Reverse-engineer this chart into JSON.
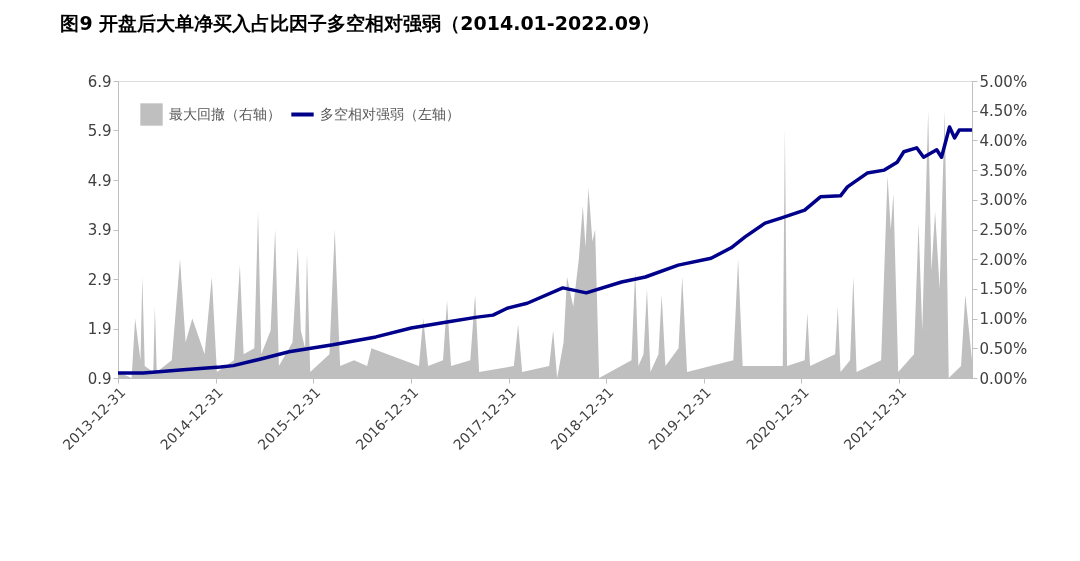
{
  "chart_data": {
    "type": "line",
    "title": "图9  开盘后大单净买入占比因子多空相对强弱（2014.01-2022.09）",
    "series": [
      {
        "name": "最大回撤（右轴）",
        "type": "area",
        "axis": "y2",
        "color": "#bfbfbf",
        "x": [
          "2013-12-31",
          "2014-02-20",
          "2014-03-05",
          "2014-03-25",
          "2014-04-01",
          "2014-04-10",
          "2014-05-12",
          "2014-05-18",
          "2014-05-25",
          "2014-07-20",
          "2014-08-20",
          "2014-09-10",
          "2014-10-05",
          "2014-11-20",
          "2014-12-17",
          "2015-01-05",
          "2015-03-10",
          "2015-04-01",
          "2015-04-15",
          "2015-05-25",
          "2015-06-08",
          "2015-06-20",
          "2015-07-25",
          "2015-08-11",
          "2015-08-25",
          "2015-10-15",
          "2015-11-04",
          "2015-11-15",
          "2015-12-01",
          "2015-12-08",
          "2015-12-20",
          "2016-03-01",
          "2016-03-21",
          "2016-04-10",
          "2016-06-01",
          "2016-07-20",
          "2016-08-05",
          "2017-01-30",
          "2017-02-15",
          "2017-03-05",
          "2017-04-30",
          "2017-05-15",
          "2017-05-30",
          "2017-08-10",
          "2017-08-28",
          "2017-09-12",
          "2018-01-20",
          "2018-02-05",
          "2018-02-20",
          "2018-06-01",
          "2018-06-16",
          "2018-07-01",
          "2018-07-25",
          "2018-08-07",
          "2018-08-30",
          "2018-09-20",
          "2018-10-05",
          "2018-10-15",
          "2018-10-26",
          "2018-11-10",
          "2018-11-20",
          "2018-12-05",
          "2019-04-05",
          "2019-04-19",
          "2019-05-01",
          "2019-05-20",
          "2019-06-02",
          "2019-06-15",
          "2019-07-15",
          "2019-07-27",
          "2019-08-10",
          "2019-09-28",
          "2019-10-12",
          "2019-10-30",
          "2020-04-20",
          "2020-05-08",
          "2020-05-25",
          "2020-10-22",
          "2020-10-30",
          "2020-11-07",
          "2021-01-12",
          "2021-01-22",
          "2021-02-01",
          "2021-05-06",
          "2021-05-16",
          "2021-05-26",
          "2021-07-01",
          "2021-07-13",
          "2021-07-25",
          "2021-10-25",
          "2021-11-18",
          "2021-11-30",
          "2021-12-10",
          "2021-12-28",
          "2022-02-25",
          "2022-03-14",
          "2022-03-28",
          "2022-04-19",
          "2022-05-01",
          "2022-05-15",
          "2022-06-01",
          "2022-06-20",
          "2022-07-05",
          "2022-08-20",
          "2022-09-05",
          "2022-09-30"
        ],
        "values": [
          0.1,
          0,
          1.0,
          0.3,
          1.7,
          0.2,
          0.1,
          1.2,
          0.1,
          0.3,
          2.0,
          0.6,
          1.0,
          0.4,
          1.7,
          0.1,
          0.3,
          1.9,
          0.4,
          0.5,
          2.8,
          0.4,
          0.8,
          2.5,
          0.2,
          0.6,
          2.2,
          0.8,
          0.5,
          2.1,
          0.1,
          0.4,
          2.5,
          0.2,
          0.3,
          0.2,
          0.5,
          0.2,
          1.0,
          0.2,
          0.3,
          1.3,
          0.2,
          0.3,
          1.4,
          0.1,
          0.2,
          0.9,
          0.1,
          0.2,
          0.8,
          0,
          0.6,
          1.7,
          1.2,
          2.0,
          2.9,
          2.2,
          3.2,
          2.3,
          2.5,
          0,
          0.3,
          1.8,
          0.2,
          0.4,
          1.5,
          0.1,
          0.4,
          1.4,
          0.2,
          0.5,
          1.7,
          0.1,
          0.3,
          2.0,
          0.2,
          0.2,
          4.2,
          0.2,
          0.3,
          1.1,
          0.2,
          0.4,
          1.2,
          0.1,
          0.3,
          1.7,
          0.1,
          0.3,
          3.4,
          2.5,
          3.1,
          0.1,
          0.4,
          2.6,
          0.8,
          4.5,
          1.8,
          2.8,
          1.5,
          4.5,
          0,
          0.2,
          1.4,
          0.3
        ]
      },
      {
        "name": "多空相对强弱（左轴）",
        "color": "#00008b",
        "x": [
          "2013-12-31",
          "2014-04-05",
          "2014-08-20",
          "2015-01-18",
          "2015-03-07",
          "2015-06-15",
          "2015-10-02",
          "2016-03-14",
          "2016-08-22",
          "2017-01-01",
          "2017-05-15",
          "2017-09-05",
          "2017-11-03",
          "2017-12-26",
          "2018-03-11",
          "2018-07-22",
          "2018-10-18",
          "2019-02-27",
          "2019-05-27",
          "2019-09-27",
          "2020-01-28",
          "2020-04-12",
          "2020-06-03",
          "2020-08-17",
          "2020-10-15",
          "2021-01-12",
          "2021-03-12",
          "2021-05-26",
          "2021-06-21",
          "2021-09-03",
          "2021-11-06",
          "2021-12-24",
          "2022-01-18",
          "2022-03-07",
          "2022-04-02",
          "2022-05-21",
          "2022-06-08",
          "2022-07-08",
          "2022-07-27",
          "2022-08-13",
          "2022-09-30"
        ],
        "values": [
          1.0,
          1.0,
          1.06,
          1.12,
          1.15,
          1.28,
          1.43,
          1.57,
          1.73,
          1.91,
          2.03,
          2.13,
          2.17,
          2.31,
          2.41,
          2.72,
          2.62,
          2.84,
          2.94,
          3.18,
          3.32,
          3.53,
          3.75,
          4.03,
          4.13,
          4.29,
          4.56,
          4.58,
          4.76,
          5.04,
          5.1,
          5.26,
          5.47,
          5.55,
          5.36,
          5.51,
          5.36,
          5.97,
          5.75,
          5.91,
          5.91
        ]
      }
    ],
    "xlim": [
      "2013-12-31",
      "2022-09-30"
    ],
    "xticks": [
      "2013-12-31",
      "2014-12-31",
      "2015-12-31",
      "2016-12-31",
      "2017-12-31",
      "2018-12-31",
      "2019-12-31",
      "2020-12-31",
      "2021-12-31"
    ],
    "ylim": [
      0.9,
      6.9
    ],
    "yticks": [
      0.9,
      1.9,
      2.9,
      3.9,
      4.9,
      5.9,
      6.9
    ],
    "y2lim": [
      0,
      5
    ],
    "y2ticks": [
      {
        "value": 0,
        "label": "0.00%"
      },
      {
        "value": 0.5,
        "label": "0.50%"
      },
      {
        "value": 1,
        "label": "1.00%"
      },
      {
        "value": 1.5,
        "label": "1.50%"
      },
      {
        "value": 2,
        "label": "2.00%"
      },
      {
        "value": 2.5,
        "label": "2.50%"
      },
      {
        "value": 3,
        "label": "3.00%"
      },
      {
        "value": 3.5,
        "label": "3.50%"
      },
      {
        "value": 4,
        "label": "4.00%"
      },
      {
        "value": 4.5,
        "label": "4.50%"
      },
      {
        "value": 5,
        "label": "5.00%"
      }
    ],
    "grid": false,
    "legend": "top left"
  }
}
